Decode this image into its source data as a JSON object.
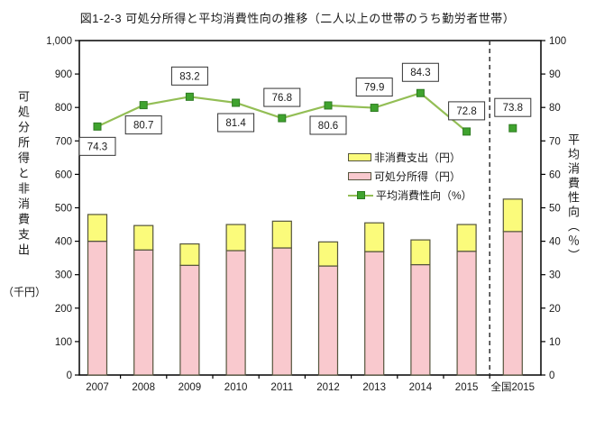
{
  "title": "図1-2-3 可処分所得と平均消費性向の推移（二人以上の世帯のうち勤労者世帯）",
  "left_axis": {
    "title": "可処分所得と非消費支出",
    "unit": "（千円）",
    "min": 0,
    "max": 1000,
    "step": 100
  },
  "right_axis": {
    "title": "平均消費性向（％）",
    "min": 0,
    "max": 100,
    "step": 10
  },
  "legend": [
    {
      "label": "非消費支出（円）",
      "swatch": "yellow-box"
    },
    {
      "label": "可処分所得（円）",
      "swatch": "pink-box"
    },
    {
      "label": "平均消費性向（%）",
      "swatch": "green-line-marker"
    }
  ],
  "colors": {
    "bar_disposable_fill": "#f9c9ce",
    "bar_nonconsumption_fill": "#fbfb7b",
    "bar_border": "#55553d",
    "line": "#93be55",
    "marker_fill": "#3fa32e",
    "marker_border": "#2d7a20",
    "axis": "#000000",
    "label_box_border": "#333333",
    "separator": "#333333"
  },
  "chart_data": {
    "type": "combo-stacked-bar-line",
    "categories": [
      "2007",
      "2008",
      "2009",
      "2010",
      "2011",
      "2012",
      "2013",
      "2014",
      "2015",
      "全国2015"
    ],
    "series": [
      {
        "name": "可処分所得（円）",
        "type": "bar",
        "stack": 1,
        "axis": "left",
        "values": [
          400,
          374,
          328,
          372,
          380,
          326,
          369,
          330,
          370,
          429
        ]
      },
      {
        "name": "非消費支出（円）",
        "type": "bar",
        "stack": 2,
        "axis": "left",
        "values": [
          80,
          73,
          64,
          78,
          80,
          72,
          86,
          74,
          80,
          97
        ]
      },
      {
        "name": "平均消費性向（%）",
        "type": "line",
        "axis": "right",
        "values": [
          74.3,
          80.7,
          83.2,
          81.4,
          76.8,
          80.6,
          79.9,
          84.3,
          72.8,
          73.8
        ],
        "connected_through_index": 8,
        "label_positions": [
          "below",
          "below",
          "above",
          "below",
          "above",
          "below",
          "above",
          "above",
          "above",
          "above"
        ]
      }
    ],
    "separator_after_index": 8,
    "left_ylim": [
      0,
      1000
    ],
    "right_ylim": [
      0,
      100
    ],
    "grid": false,
    "legend_position": "inside-right-middle"
  }
}
